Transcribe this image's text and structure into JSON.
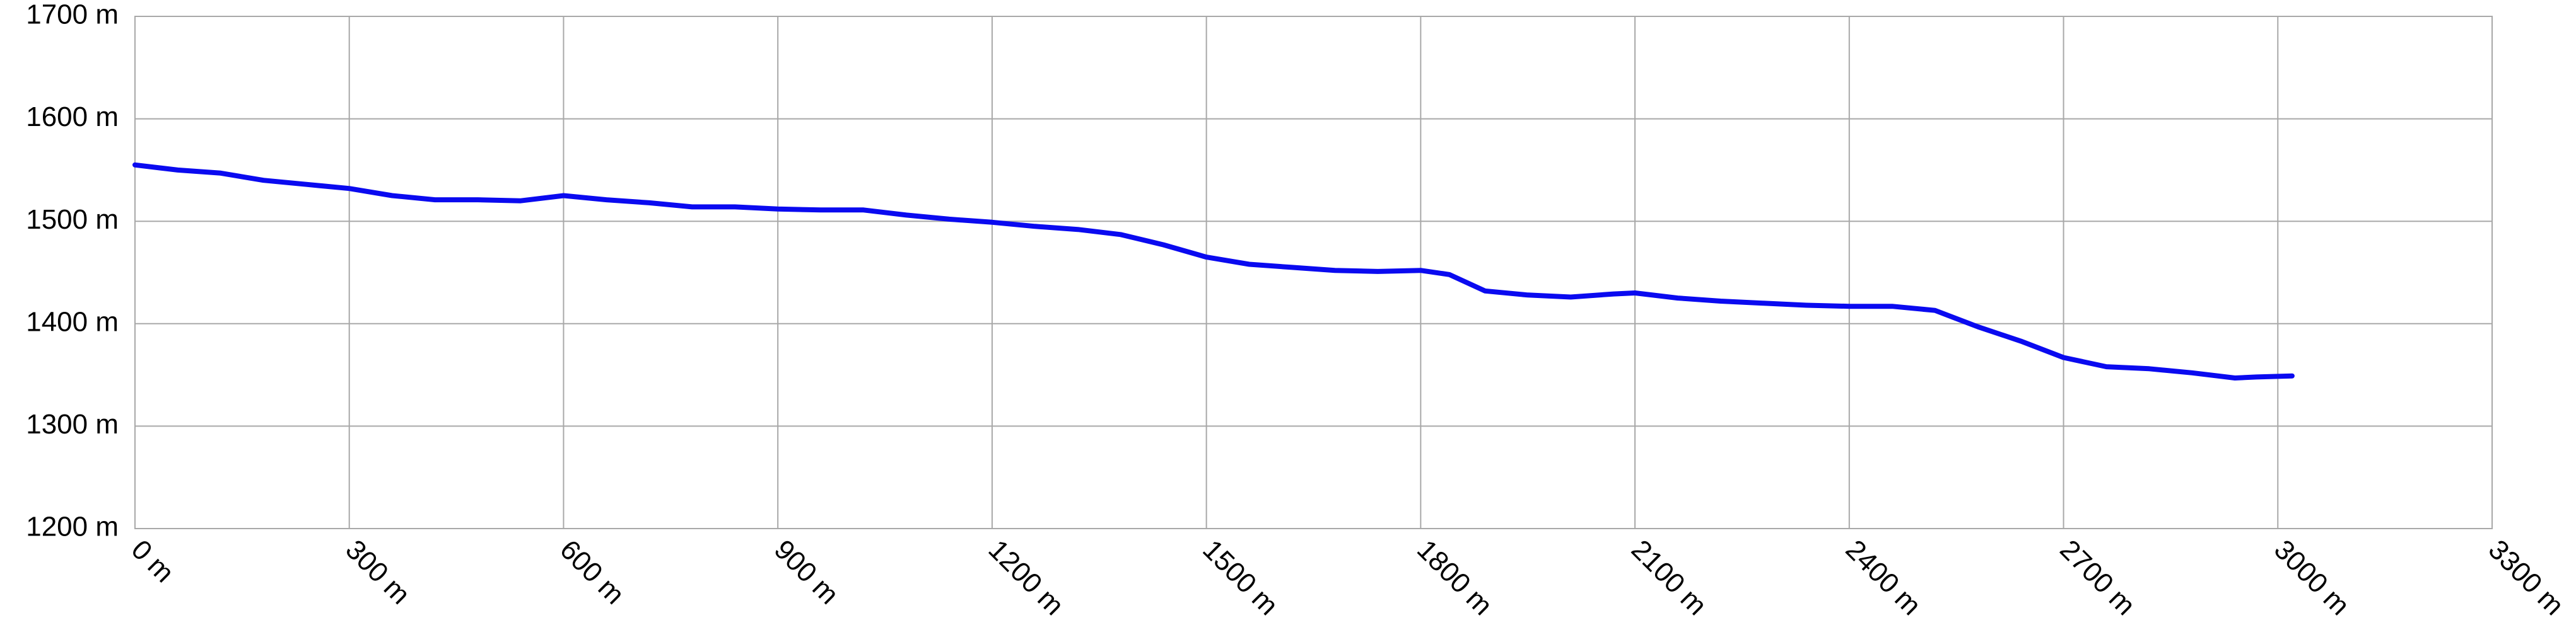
{
  "chart_data": {
    "type": "line",
    "x": [
      0,
      60,
      120,
      180,
      240,
      300,
      360,
      420,
      480,
      540,
      600,
      660,
      720,
      780,
      840,
      900,
      960,
      1020,
      1080,
      1140,
      1200,
      1260,
      1320,
      1380,
      1440,
      1500,
      1560,
      1620,
      1680,
      1740,
      1800,
      1840,
      1890,
      1950,
      2010,
      2070,
      2100,
      2160,
      2220,
      2280,
      2340,
      2400,
      2460,
      2520,
      2580,
      2640,
      2700,
      2760,
      2820,
      2880,
      2940,
      2970,
      3020
    ],
    "values": [
      1555,
      1550,
      1547,
      1540,
      1536,
      1532,
      1525,
      1521,
      1521,
      1520,
      1525,
      1521,
      1518,
      1514,
      1514,
      1512,
      1511,
      1511,
      1506,
      1502,
      1499,
      1495,
      1492,
      1487,
      1477,
      1465,
      1458,
      1455,
      1452,
      1451,
      1452,
      1448,
      1432,
      1428,
      1426,
      1429,
      1430,
      1425,
      1422,
      1420,
      1418,
      1417,
      1417,
      1413,
      1397,
      1383,
      1367,
      1358,
      1356,
      1352,
      1347,
      1348,
      1349
    ],
    "color": "#0a0af0",
    "xlim": [
      0,
      3300
    ],
    "xticks": [
      {
        "value": 0,
        "label": "0 m"
      },
      {
        "value": 300,
        "label": "300 m"
      },
      {
        "value": 600,
        "label": "600 m"
      },
      {
        "value": 900,
        "label": "900 m"
      },
      {
        "value": 1200,
        "label": "1200 m"
      },
      {
        "value": 1500,
        "label": "1500 m"
      },
      {
        "value": 1800,
        "label": "1800 m"
      },
      {
        "value": 2100,
        "label": "2100 m"
      },
      {
        "value": 2400,
        "label": "2400 m"
      },
      {
        "value": 2700,
        "label": "2700 m"
      },
      {
        "value": 3000,
        "label": "3000 m"
      },
      {
        "value": 3300,
        "label": "3300 m"
      }
    ],
    "ylim": [
      1200,
      1700
    ],
    "yticks": [
      {
        "value": 1200,
        "label": "1200 m"
      },
      {
        "value": 1300,
        "label": "1300 m"
      },
      {
        "value": 1400,
        "label": "1400 m"
      },
      {
        "value": 1500,
        "label": "1500 m"
      },
      {
        "value": 1600,
        "label": "1600 m"
      },
      {
        "value": 1700,
        "label": "1700 m"
      }
    ],
    "grid": true
  }
}
